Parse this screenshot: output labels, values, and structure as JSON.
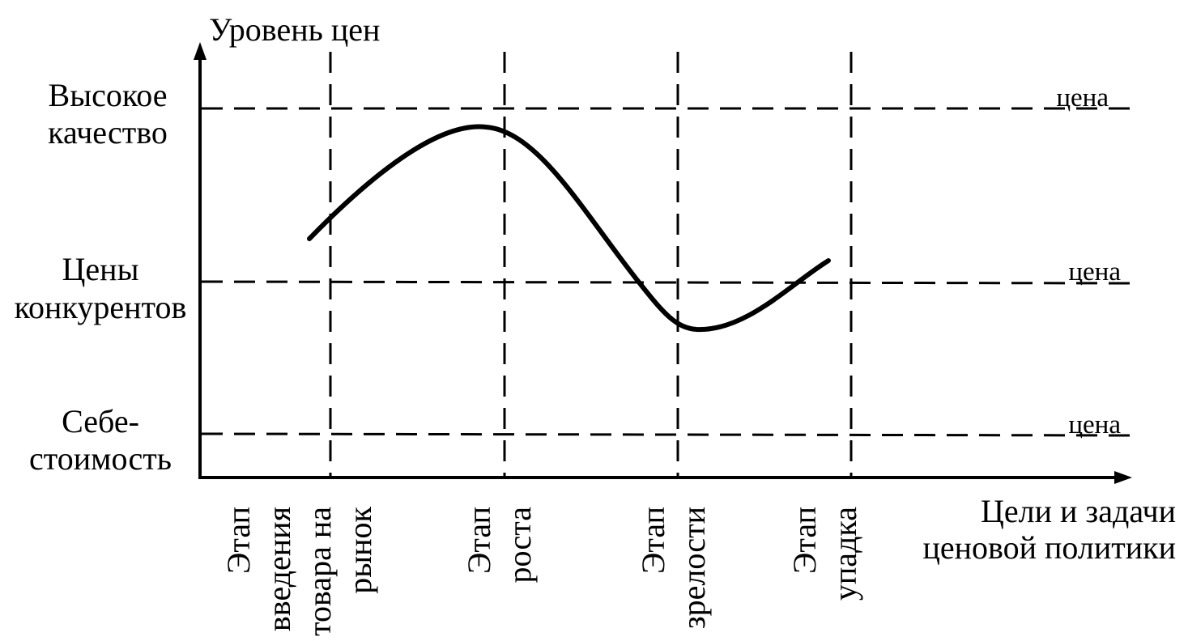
{
  "y_axis": {
    "title": "Уровень цен"
  },
  "x_axis": {
    "title_line1": "Цели и задачи",
    "title_line2": "ценовой политики"
  },
  "levels": [
    {
      "label_line1": "Высокое",
      "label_line2": "качество",
      "right_label": "цена"
    },
    {
      "label_line1": "Цены",
      "label_line2": "конкурентов",
      "right_label": "цена"
    },
    {
      "label_line1": "Себе-",
      "label_line2": "стоимость",
      "right_label": "цена"
    }
  ],
  "stages": [
    {
      "lines": [
        "Этап",
        "введения",
        "товара на",
        "рынок"
      ]
    },
    {
      "lines": [
        "Этап",
        "роста"
      ]
    },
    {
      "lines": [
        "Этап",
        "зрелости"
      ]
    },
    {
      "lines": [
        "Этап",
        "упадка"
      ]
    }
  ],
  "colors": {
    "ink": "#000000",
    "background": "#ffffff"
  }
}
